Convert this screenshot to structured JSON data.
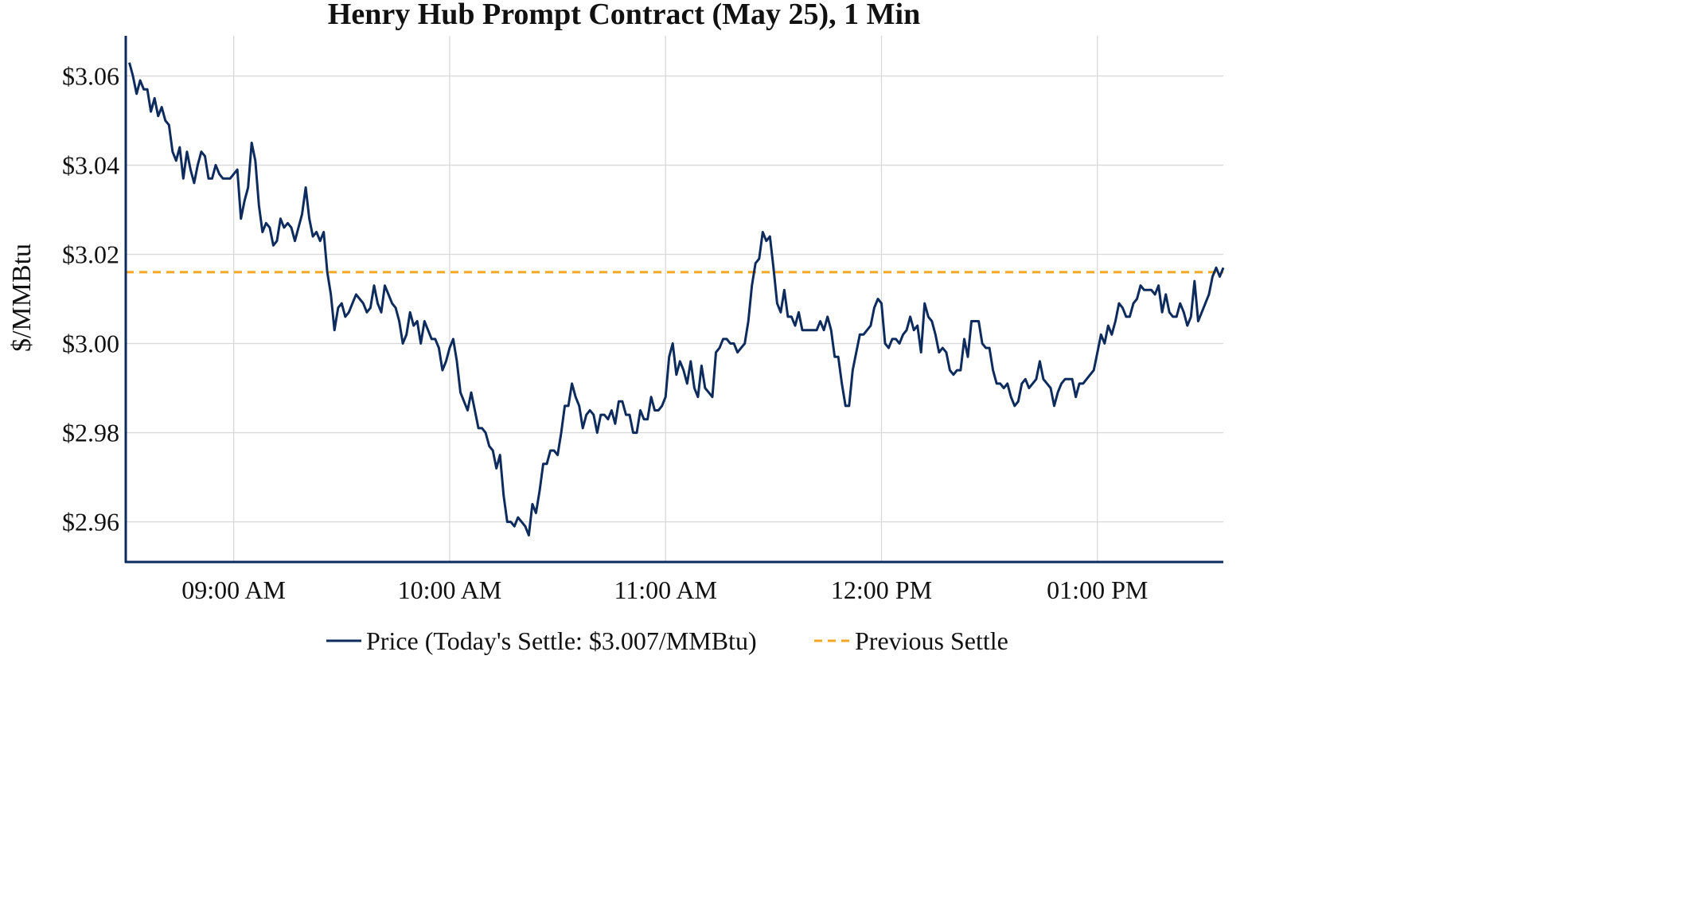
{
  "chart_data": {
    "type": "line",
    "title": "Henry Hub Prompt Contract (May 25), 1 Min",
    "ylabel": "$/MMBtu",
    "xlabel": "",
    "y_tick_values": [
      2.96,
      2.98,
      3.0,
      3.02,
      3.04,
      3.06
    ],
    "y_tick_labels": [
      "$2.96",
      "$2.98",
      "$3.00",
      "$3.02",
      "$3.04",
      "$3.06"
    ],
    "x_tick_values": [
      "09:00",
      "10:00",
      "11:00",
      "12:00",
      "13:00"
    ],
    "x_tick_labels": [
      "09:00 AM",
      "10:00 AM",
      "11:00 AM",
      "12:00 PM",
      "01:00 PM"
    ],
    "xlim": [
      "08:30",
      "13:35"
    ],
    "ylim": [
      2.951,
      3.069
    ],
    "grid": true,
    "legend_position": "bottom-center",
    "colors": {
      "price": "#0d2b5c",
      "previous_settle": "#f5a623",
      "grid": "#d9d9d9",
      "axis": "#0d2b5c"
    },
    "series": [
      {
        "name": "Price (Today's Settle: $3.007/MMBtu)",
        "style": "solid",
        "x": [
          "08:31",
          "08:32",
          "08:33",
          "08:34",
          "08:35",
          "08:36",
          "08:37",
          "08:38",
          "08:39",
          "08:40",
          "08:41",
          "08:42",
          "08:43",
          "08:44",
          "08:45",
          "08:46",
          "08:47",
          "08:48",
          "08:49",
          "08:50",
          "08:51",
          "08:52",
          "08:53",
          "08:54",
          "08:55",
          "08:56",
          "08:57",
          "08:58",
          "08:59",
          "09:00",
          "09:01",
          "09:02",
          "09:03",
          "09:04",
          "09:05",
          "09:06",
          "09:07",
          "09:08",
          "09:09",
          "09:10",
          "09:11",
          "09:12",
          "09:13",
          "09:14",
          "09:15",
          "09:16",
          "09:17",
          "09:18",
          "09:19",
          "09:20",
          "09:21",
          "09:22",
          "09:23",
          "09:24",
          "09:25",
          "09:26",
          "09:27",
          "09:28",
          "09:29",
          "09:30",
          "09:31",
          "09:32",
          "09:33",
          "09:34",
          "09:35",
          "09:36",
          "09:37",
          "09:38",
          "09:39",
          "09:40",
          "09:41",
          "09:42",
          "09:43",
          "09:44",
          "09:45",
          "09:46",
          "09:47",
          "09:48",
          "09:49",
          "09:50",
          "09:51",
          "09:52",
          "09:53",
          "09:54",
          "09:55",
          "09:56",
          "09:57",
          "09:58",
          "09:59",
          "10:00",
          "10:01",
          "10:02",
          "10:03",
          "10:04",
          "10:05",
          "10:06",
          "10:07",
          "10:08",
          "10:09",
          "10:10",
          "10:11",
          "10:12",
          "10:13",
          "10:14",
          "10:15",
          "10:16",
          "10:17",
          "10:18",
          "10:19",
          "10:20",
          "10:21",
          "10:22",
          "10:23",
          "10:24",
          "10:25",
          "10:26",
          "10:27",
          "10:28",
          "10:29",
          "10:30",
          "10:31",
          "10:32",
          "10:33",
          "10:34",
          "10:35",
          "10:36",
          "10:37",
          "10:38",
          "10:39",
          "10:40",
          "10:41",
          "10:42",
          "10:43",
          "10:44",
          "10:45",
          "10:46",
          "10:47",
          "10:48",
          "10:49",
          "10:50",
          "10:51",
          "10:52",
          "10:53",
          "10:54",
          "10:55",
          "10:56",
          "10:57",
          "10:58",
          "10:59",
          "11:00",
          "11:01",
          "11:02",
          "11:03",
          "11:04",
          "11:05",
          "11:06",
          "11:07",
          "11:08",
          "11:09",
          "11:10",
          "11:11",
          "11:12",
          "11:13",
          "11:14",
          "11:15",
          "11:16",
          "11:17",
          "11:18",
          "11:19",
          "11:20",
          "11:21",
          "11:22",
          "11:23",
          "11:24",
          "11:25",
          "11:26",
          "11:27",
          "11:28",
          "11:29",
          "11:30",
          "11:31",
          "11:32",
          "11:33",
          "11:34",
          "11:35",
          "11:36",
          "11:37",
          "11:38",
          "11:39",
          "11:40",
          "11:41",
          "11:42",
          "11:43",
          "11:44",
          "11:45",
          "11:46",
          "11:47",
          "11:48",
          "11:49",
          "11:50",
          "11:51",
          "11:52",
          "11:53",
          "11:54",
          "11:55",
          "11:56",
          "11:57",
          "11:58",
          "11:59",
          "12:00",
          "12:01",
          "12:02",
          "12:03",
          "12:04",
          "12:05",
          "12:06",
          "12:07",
          "12:08",
          "12:09",
          "12:10",
          "12:11",
          "12:12",
          "12:13",
          "12:14",
          "12:15",
          "12:16",
          "12:17",
          "12:18",
          "12:19",
          "12:20",
          "12:21",
          "12:22",
          "12:23",
          "12:24",
          "12:25",
          "12:26",
          "12:27",
          "12:28",
          "12:29",
          "12:30",
          "12:31",
          "12:32",
          "12:33",
          "12:34",
          "12:35",
          "12:36",
          "12:37",
          "12:38",
          "12:39",
          "12:40",
          "12:41",
          "12:42",
          "12:43",
          "12:44",
          "12:45",
          "12:46",
          "12:47",
          "12:48",
          "12:49",
          "12:50",
          "12:51",
          "12:52",
          "12:53",
          "12:54",
          "12:55",
          "12:56",
          "12:57",
          "12:58",
          "12:59",
          "13:00",
          "13:01",
          "13:02",
          "13:03",
          "13:04",
          "13:05",
          "13:06",
          "13:07",
          "13:08",
          "13:09",
          "13:10",
          "13:11",
          "13:12",
          "13:13",
          "13:14",
          "13:15",
          "13:16",
          "13:17",
          "13:18",
          "13:19",
          "13:20",
          "13:21",
          "13:22",
          "13:23",
          "13:24",
          "13:25",
          "13:26",
          "13:27",
          "13:28",
          "13:29",
          "13:30",
          "13:31",
          "13:32",
          "13:33",
          "13:34",
          "13:35"
        ],
        "values": [
          3.063,
          3.06,
          3.056,
          3.059,
          3.057,
          3.057,
          3.052,
          3.055,
          3.051,
          3.053,
          3.05,
          3.049,
          3.043,
          3.041,
          3.044,
          3.037,
          3.043,
          3.039,
          3.036,
          3.04,
          3.043,
          3.042,
          3.037,
          3.037,
          3.04,
          3.038,
          3.037,
          3.037,
          3.037,
          3.038,
          3.039,
          3.028,
          3.032,
          3.035,
          3.045,
          3.041,
          3.031,
          3.025,
          3.027,
          3.026,
          3.022,
          3.023,
          3.028,
          3.026,
          3.027,
          3.026,
          3.023,
          3.026,
          3.029,
          3.035,
          3.028,
          3.024,
          3.025,
          3.023,
          3.025,
          3.016,
          3.011,
          3.003,
          3.008,
          3.009,
          3.006,
          3.007,
          3.009,
          3.011,
          3.01,
          3.009,
          3.007,
          3.008,
          3.013,
          3.009,
          3.007,
          3.013,
          3.011,
          3.009,
          3.008,
          3.005,
          3.0,
          3.002,
          3.007,
          3.004,
          3.005,
          3.0,
          3.005,
          3.003,
          3.001,
          3.001,
          2.999,
          2.994,
          2.996,
          2.999,
          3.001,
          2.996,
          2.989,
          2.987,
          2.985,
          2.989,
          2.985,
          2.981,
          2.981,
          2.98,
          2.977,
          2.976,
          2.972,
          2.975,
          2.966,
          2.96,
          2.96,
          2.959,
          2.961,
          2.96,
          2.959,
          2.957,
          2.964,
          2.962,
          2.967,
          2.973,
          2.973,
          2.976,
          2.976,
          2.975,
          2.98,
          2.986,
          2.986,
          2.991,
          2.988,
          2.986,
          2.981,
          2.984,
          2.985,
          2.984,
          2.98,
          2.984,
          2.984,
          2.983,
          2.985,
          2.982,
          2.987,
          2.987,
          2.984,
          2.984,
          2.98,
          2.98,
          2.985,
          2.983,
          2.983,
          2.988,
          2.985,
          2.985,
          2.986,
          2.988,
          2.997,
          3.0,
          2.993,
          2.996,
          2.994,
          2.991,
          2.996,
          2.99,
          2.988,
          2.995,
          2.99,
          2.989,
          2.988,
          2.998,
          2.999,
          3.001,
          3.001,
          3.0,
          3.0,
          2.998,
          2.999,
          3.0,
          3.005,
          3.013,
          3.018,
          3.019,
          3.025,
          3.023,
          3.024,
          3.017,
          3.009,
          3.007,
          3.012,
          3.006,
          3.006,
          3.004,
          3.007,
          3.003,
          3.003,
          3.003,
          3.003,
          3.003,
          3.005,
          3.003,
          3.006,
          3.003,
          2.997,
          2.997,
          2.991,
          2.986,
          2.986,
          2.994,
          2.998,
          3.002,
          3.002,
          3.003,
          3.004,
          3.008,
          3.01,
          3.009,
          3.0,
          2.999,
          3.001,
          3.001,
          3.0,
          3.002,
          3.003,
          3.006,
          3.003,
          3.004,
          2.998,
          3.009,
          3.006,
          3.005,
          3.002,
          2.998,
          2.999,
          2.998,
          2.994,
          2.993,
          2.994,
          2.994,
          3.001,
          2.997,
          3.005,
          3.005,
          3.005,
          3.0,
          2.999,
          2.999,
          2.994,
          2.991,
          2.991,
          2.99,
          2.991,
          2.988,
          2.986,
          2.987,
          2.991,
          2.992,
          2.99,
          2.991,
          2.992,
          2.996,
          2.992,
          2.991,
          2.99,
          2.986,
          2.989,
          2.991,
          2.992,
          2.992,
          2.992,
          2.988,
          2.991,
          2.991,
          2.992,
          2.993,
          2.994,
          2.998,
          3.002,
          3.0,
          3.004,
          3.002,
          3.005,
          3.009,
          3.008,
          3.006,
          3.006,
          3.009,
          3.01,
          3.013,
          3.012,
          3.012,
          3.012,
          3.011,
          3.013,
          3.007,
          3.011,
          3.007,
          3.006,
          3.006,
          3.009,
          3.007,
          3.004,
          3.006,
          3.014,
          3.005,
          3.007,
          3.009,
          3.011,
          3.015,
          3.017,
          3.015,
          3.017
        ]
      },
      {
        "name": "Previous Settle",
        "style": "dashed",
        "x": [
          "08:30",
          "13:35"
        ],
        "values": [
          3.016,
          3.016
        ]
      }
    ]
  }
}
